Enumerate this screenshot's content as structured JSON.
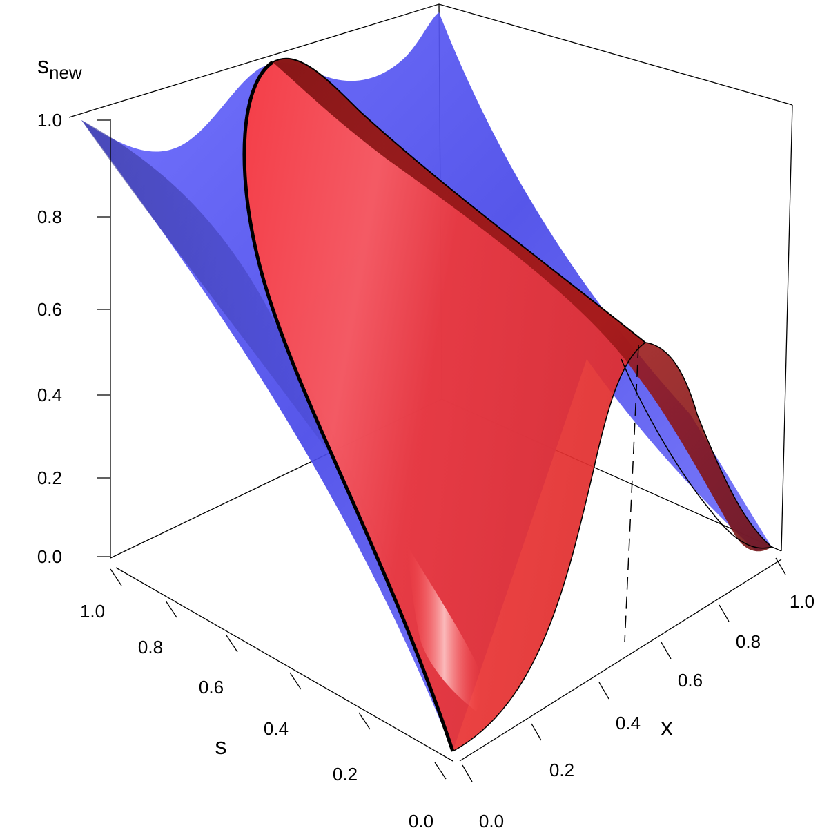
{
  "chart_data": {
    "type": "surface-3d",
    "title": "",
    "axes": {
      "z": {
        "label": "s",
        "label_sub": "new",
        "range": [
          0,
          1
        ],
        "ticks": [
          "0.0",
          "0.2",
          "0.4",
          "0.6",
          "0.8",
          "1.0"
        ]
      },
      "s": {
        "label": "s",
        "range": [
          0,
          1
        ],
        "ticks": [
          "0.0",
          "0.2",
          "0.4",
          "0.6",
          "0.8",
          "1.0"
        ]
      },
      "x": {
        "label": "x",
        "range": [
          0,
          1
        ],
        "ticks": [
          "0.0",
          "0.2",
          "0.4",
          "0.6",
          "0.8",
          "1.0"
        ]
      }
    },
    "series": [
      {
        "color": "#5b5bff",
        "kind": "surface",
        "description_values": {
          "s_new_at_x0": "equals s",
          "s_new_at_x1": "equals s"
        }
      },
      {
        "color": "#e83030",
        "kind": "surface",
        "ridge_s_new_max": 1.0,
        "ridge_x": 0.0
      }
    ],
    "annotations": {
      "dashed_line_x": 0.5
    },
    "grid": false
  }
}
